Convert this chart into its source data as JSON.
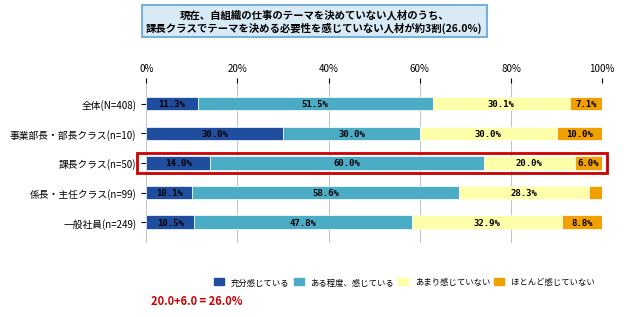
{
  "title_line1": "現在、自組織の仕事のテーマを決めていない人材のうち、",
  "title_line2": "課長クラスでテーマを決める必要性を感じていない人材が約3割(26.0%)",
  "categories": [
    "全体(N=408)",
    "事業部長・部長クラス(n=10)",
    "課長クラス(n=50)",
    "係長・主任クラス(n=99)",
    "一般社員(n=249)"
  ],
  "data": [
    [
      11.3,
      51.5,
      30.1,
      7.1
    ],
    [
      30.0,
      30.0,
      30.0,
      10.0
    ],
    [
      14.0,
      60.0,
      20.0,
      6.0
    ],
    [
      10.1,
      58.6,
      28.3,
      3.0
    ],
    [
      10.5,
      47.8,
      32.9,
      8.8
    ]
  ],
  "colors": [
    "#1f4e9e",
    "#4bacc6",
    "#ffffaa",
    "#f0a000"
  ],
  "legend_labels": [
    "充分感じている",
    "ある程度、感じている",
    "あまり感じていない",
    "ほとんど感じていない"
  ],
  "highlight_row": 2,
  "annotation": "20.0+6.0 = 26.0%",
  "annotation_color": "#cc0000",
  "background_color": "#ffffff",
  "title_bg_color": "#d9eaf7",
  "title_border_color": "#7bafd4",
  "highlight_border_color": "#cc0000"
}
